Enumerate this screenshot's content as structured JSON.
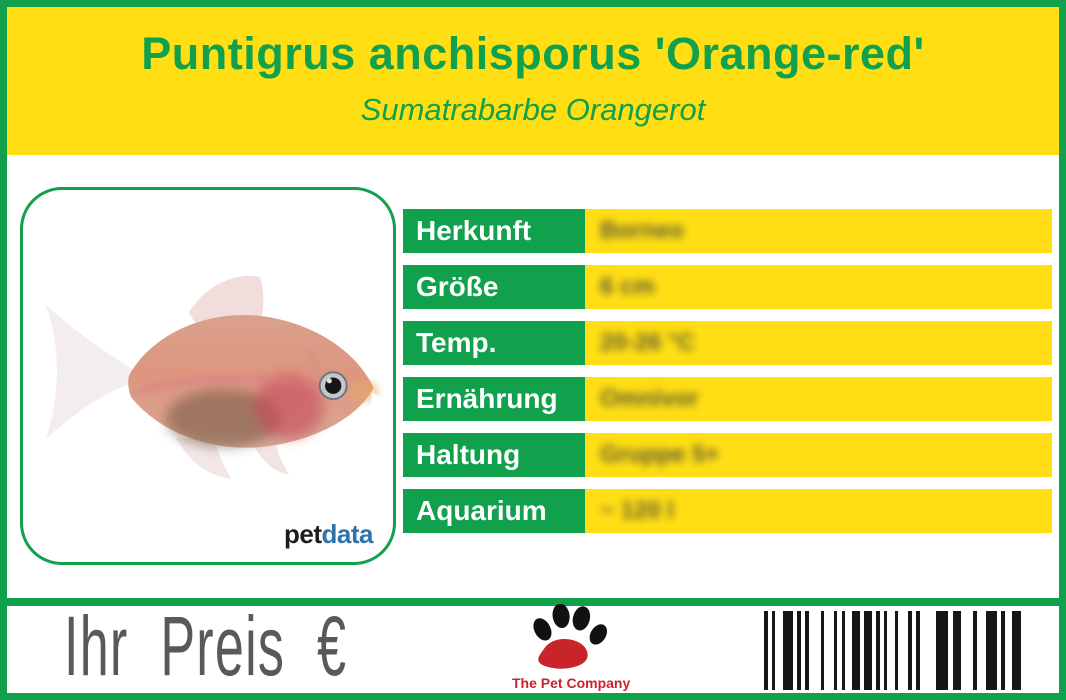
{
  "header": {
    "title": "Puntigrus anchisporus 'Orange-red'",
    "subtitle": "Sumatrabarbe Orangerot"
  },
  "photo": {
    "brand_pet": "pet",
    "brand_data": "data"
  },
  "table": {
    "rows": [
      {
        "label": "Herkunft",
        "value": "Borneo"
      },
      {
        "label": "Größe",
        "value": "6 cm"
      },
      {
        "label": "Temp.",
        "value": "20-26 °C"
      },
      {
        "label": "Ernährung",
        "value": "Omnivor"
      },
      {
        "label": "Haltung",
        "value": "Gruppe 5+"
      },
      {
        "label": "Aquarium",
        "value": "~ 120 l"
      }
    ]
  },
  "footer": {
    "price_label": "Ihr Preis €",
    "company": "The Pet Company"
  },
  "colors": {
    "green": "#11A04C",
    "yellow": "#FFDE14",
    "text_gray": "#58595B",
    "brand_blue": "#2F73AD",
    "company_red": "#C9232B"
  },
  "barcode": {
    "pattern": [
      4,
      4,
      3,
      8,
      10,
      4,
      4,
      4,
      4,
      12,
      3,
      10,
      3,
      5,
      3,
      7,
      8,
      4,
      8,
      4,
      4,
      4,
      3,
      8,
      3,
      10,
      4,
      4,
      4,
      16,
      12,
      5,
      8,
      12,
      4,
      9,
      11,
      4,
      4,
      7,
      9
    ]
  }
}
